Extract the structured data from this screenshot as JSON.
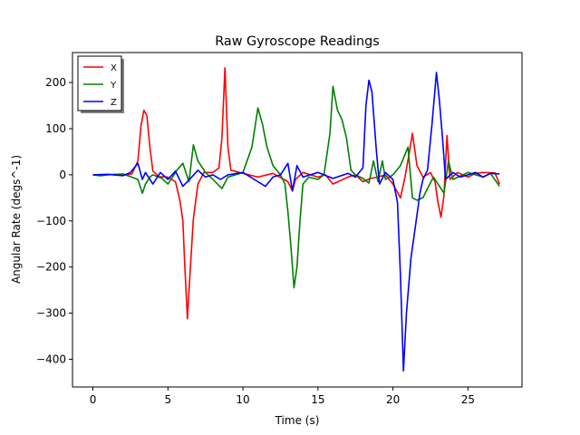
{
  "chart_data": {
    "type": "line",
    "title": "Raw Gyroscope Readings",
    "xlabel": "Time (s)",
    "ylabel": "Angular Rate (degs^-1)",
    "xlim": [
      -1.36,
      28.6
    ],
    "ylim": [
      -460,
      265
    ],
    "xticks": [
      0,
      5,
      10,
      15,
      20,
      25
    ],
    "yticks": [
      -400,
      -300,
      -200,
      -100,
      0,
      100,
      200
    ],
    "grid": false,
    "legend_position": "top-left",
    "series": [
      {
        "name": "X",
        "color": "#ff0000",
        "points": [
          [
            0,
            0
          ],
          [
            1,
            1
          ],
          [
            2,
            -1
          ],
          [
            2.6,
            2
          ],
          [
            3,
            30
          ],
          [
            3.2,
            105
          ],
          [
            3.4,
            140
          ],
          [
            3.6,
            128
          ],
          [
            3.8,
            60
          ],
          [
            4,
            8
          ],
          [
            4.4,
            -4
          ],
          [
            5,
            -5
          ],
          [
            5.5,
            -15
          ],
          [
            5.8,
            -55
          ],
          [
            6,
            -100
          ],
          [
            6.1,
            -180
          ],
          [
            6.3,
            -312
          ],
          [
            6.5,
            -200
          ],
          [
            6.7,
            -95
          ],
          [
            7,
            -20
          ],
          [
            7.4,
            5
          ],
          [
            8,
            5
          ],
          [
            8.4,
            15
          ],
          [
            8.6,
            80
          ],
          [
            8.8,
            232
          ],
          [
            9,
            60
          ],
          [
            9.2,
            10
          ],
          [
            10,
            3
          ],
          [
            11,
            -5
          ],
          [
            12,
            3
          ],
          [
            13,
            -15
          ],
          [
            13.3,
            -35
          ],
          [
            13.5,
            -10
          ],
          [
            14,
            5
          ],
          [
            15,
            -5
          ],
          [
            15.5,
            0
          ],
          [
            16,
            -20
          ],
          [
            17,
            -5
          ],
          [
            17.5,
            0
          ],
          [
            18,
            -15
          ],
          [
            18.5,
            -8
          ],
          [
            19,
            -5
          ],
          [
            19.5,
            0
          ],
          [
            20,
            -20
          ],
          [
            20.5,
            -50
          ],
          [
            20.8,
            -5
          ],
          [
            21.1,
            50
          ],
          [
            21.3,
            90
          ],
          [
            21.6,
            20
          ],
          [
            22,
            -5
          ],
          [
            22.5,
            5
          ],
          [
            22.8,
            -15
          ],
          [
            23,
            -60
          ],
          [
            23.2,
            -92
          ],
          [
            23.4,
            -45
          ],
          [
            23.6,
            85
          ],
          [
            23.8,
            -10
          ],
          [
            24.3,
            5
          ],
          [
            25,
            -5
          ],
          [
            25.5,
            3
          ],
          [
            26,
            5
          ],
          [
            26.8,
            4
          ],
          [
            27.1,
            -20
          ]
        ]
      },
      {
        "name": "Y",
        "color": "#008000",
        "points": [
          [
            0,
            0
          ],
          [
            0.5,
            -2
          ],
          [
            1,
            0
          ],
          [
            2,
            2
          ],
          [
            3,
            -10
          ],
          [
            3.3,
            -40
          ],
          [
            3.5,
            -20
          ],
          [
            3.8,
            -5
          ],
          [
            4,
            0
          ],
          [
            4.6,
            -8
          ],
          [
            5,
            -20
          ],
          [
            5.3,
            -5
          ],
          [
            5.6,
            10
          ],
          [
            6,
            25
          ],
          [
            6.4,
            -15
          ],
          [
            6.7,
            65
          ],
          [
            7,
            30
          ],
          [
            7.5,
            5
          ],
          [
            8,
            -10
          ],
          [
            8.6,
            -30
          ],
          [
            9,
            -5
          ],
          [
            10,
            5
          ],
          [
            10.6,
            60
          ],
          [
            11,
            145
          ],
          [
            11.3,
            110
          ],
          [
            11.6,
            60
          ],
          [
            12,
            20
          ],
          [
            12.5,
            0
          ],
          [
            12.8,
            -20
          ],
          [
            13,
            -80
          ],
          [
            13.2,
            -155
          ],
          [
            13.4,
            -245
          ],
          [
            13.6,
            -200
          ],
          [
            13.8,
            -100
          ],
          [
            14,
            -20
          ],
          [
            14.4,
            -5
          ],
          [
            15,
            -10
          ],
          [
            15.4,
            0
          ],
          [
            15.8,
            90
          ],
          [
            16,
            192
          ],
          [
            16.3,
            140
          ],
          [
            16.6,
            120
          ],
          [
            16.9,
            80
          ],
          [
            17.2,
            10
          ],
          [
            17.5,
            0
          ],
          [
            18,
            -8
          ],
          [
            18.4,
            -18
          ],
          [
            18.7,
            30
          ],
          [
            19,
            -15
          ],
          [
            19.3,
            30
          ],
          [
            19.5,
            -10
          ],
          [
            20,
            0
          ],
          [
            20.5,
            20
          ],
          [
            21,
            60
          ],
          [
            21.3,
            -50
          ],
          [
            21.6,
            -55
          ],
          [
            22,
            -50
          ],
          [
            22.3,
            -30
          ],
          [
            22.7,
            -5
          ],
          [
            23,
            -20
          ],
          [
            23.4,
            -40
          ],
          [
            23.7,
            30
          ],
          [
            24,
            -10
          ],
          [
            25,
            5
          ],
          [
            25.5,
            0
          ],
          [
            26,
            -5
          ],
          [
            26.5,
            3
          ],
          [
            27.1,
            -25
          ]
        ]
      },
      {
        "name": "Z",
        "color": "#0000ff",
        "points": [
          [
            0,
            0
          ],
          [
            1,
            1
          ],
          [
            2,
            -2
          ],
          [
            2.5,
            5
          ],
          [
            3,
            25
          ],
          [
            3.3,
            -10
          ],
          [
            3.5,
            5
          ],
          [
            4,
            -20
          ],
          [
            4.5,
            5
          ],
          [
            5,
            -10
          ],
          [
            5.5,
            8
          ],
          [
            6,
            -25
          ],
          [
            6.5,
            -8
          ],
          [
            7,
            10
          ],
          [
            7.5,
            -5
          ],
          [
            8,
            0
          ],
          [
            8.5,
            -10
          ],
          [
            9,
            0
          ],
          [
            10,
            5
          ],
          [
            11,
            -15
          ],
          [
            11.5,
            -25
          ],
          [
            12,
            -5
          ],
          [
            12.5,
            0
          ],
          [
            13,
            25
          ],
          [
            13.3,
            -35
          ],
          [
            13.6,
            20
          ],
          [
            14,
            -5
          ],
          [
            15,
            5
          ],
          [
            16,
            -8
          ],
          [
            17,
            3
          ],
          [
            17.5,
            -5
          ],
          [
            18,
            15
          ],
          [
            18.2,
            150
          ],
          [
            18.4,
            205
          ],
          [
            18.6,
            180
          ],
          [
            18.9,
            50
          ],
          [
            19.1,
            -20
          ],
          [
            19.5,
            5
          ],
          [
            20,
            -10
          ],
          [
            20.3,
            -60
          ],
          [
            20.5,
            -220
          ],
          [
            20.7,
            -425
          ],
          [
            20.9,
            -300
          ],
          [
            21.2,
            -180
          ],
          [
            21.5,
            -110
          ],
          [
            21.8,
            -40
          ],
          [
            22,
            -10
          ],
          [
            22.3,
            10
          ],
          [
            22.6,
            110
          ],
          [
            22.9,
            222
          ],
          [
            23.1,
            160
          ],
          [
            23.3,
            80
          ],
          [
            23.5,
            -10
          ],
          [
            24,
            5
          ],
          [
            24.5,
            -5
          ],
          [
            25,
            0
          ],
          [
            25.5,
            5
          ],
          [
            26,
            -5
          ],
          [
            26.5,
            3
          ],
          [
            27.1,
            2
          ]
        ]
      }
    ]
  }
}
